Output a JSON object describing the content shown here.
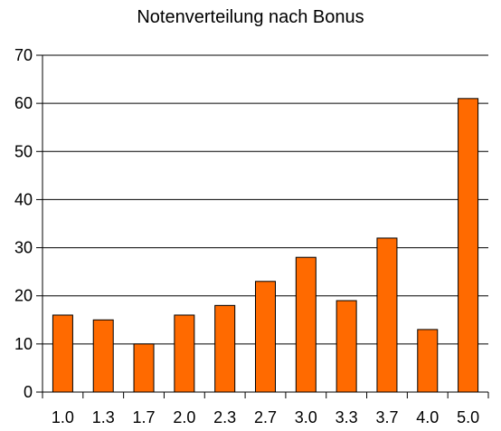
{
  "chart_data": {
    "type": "bar",
    "title": "Notenverteilung nach Bonus",
    "xlabel": "",
    "ylabel": "",
    "categories": [
      "1.0",
      "1.3",
      "1.7",
      "2.0",
      "2.3",
      "2.7",
      "3.0",
      "3.3",
      "3.7",
      "4.0",
      "5.0"
    ],
    "values": [
      16,
      15,
      10,
      16,
      18,
      23,
      28,
      19,
      32,
      13,
      61
    ],
    "ylim": [
      0,
      70
    ],
    "yticks": [
      0,
      10,
      20,
      30,
      40,
      50,
      60,
      70
    ],
    "grid": true,
    "legend": "none",
    "bar_color": "#ff6a00",
    "bar_edge_color": "#000000"
  }
}
